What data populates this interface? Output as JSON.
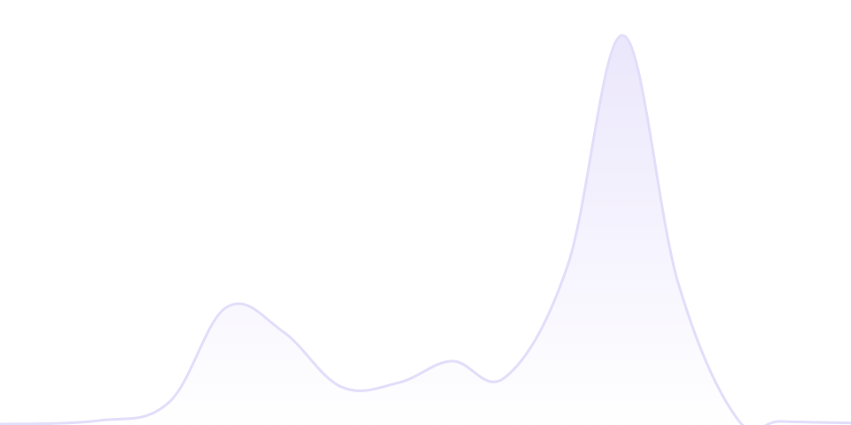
{
  "chart_data": {
    "type": "area",
    "title": "",
    "xlabel": "",
    "ylabel": "",
    "xlim": [
      0,
      100
    ],
    "ylim": [
      0,
      100
    ],
    "grid": false,
    "legend": "none",
    "colors": {
      "stroke": "#e2defa",
      "fill_top": "#ebe7fc",
      "fill_bottom": "#ffffff"
    },
    "x": [
      0,
      11.5,
      19.8,
      26.6,
      33.3,
      40.1,
      46.9,
      53.1,
      59.4,
      66.7,
      73.2,
      79.7,
      86.7,
      91.7,
      100
    ],
    "values": [
      0.2,
      1.1,
      5.7,
      30.2,
      23.9,
      9.8,
      10.9,
      16.4,
      12.3,
      40.9,
      100,
      36.4,
      1.4,
      0.9,
      0.5
    ]
  }
}
